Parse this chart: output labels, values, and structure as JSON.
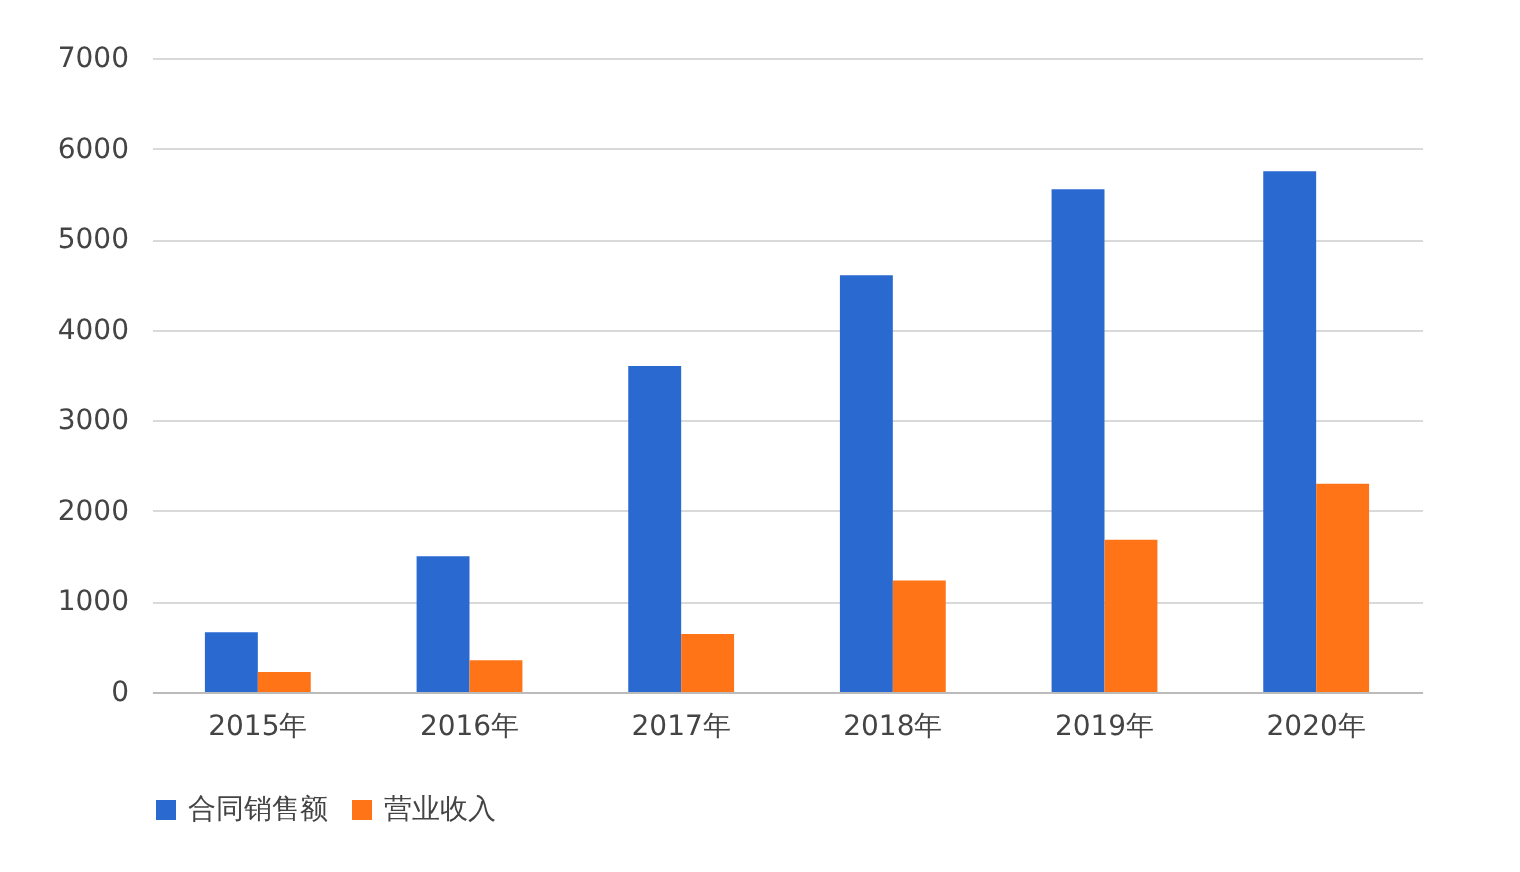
{
  "chart_data": {
    "type": "bar",
    "categories": [
      "2015年",
      "2016年",
      "2017年",
      "2018年",
      "2019年",
      "2020年"
    ],
    "series": [
      {
        "name": "合同销售额",
        "color": "#2a6ad0",
        "values": [
          660,
          1500,
          3600,
          4600,
          5550,
          5750
        ]
      },
      {
        "name": "营业收入",
        "color": "#ff7417",
        "values": [
          220,
          350,
          640,
          1230,
          1680,
          2300
        ]
      }
    ],
    "ylim": [
      0,
      7000
    ],
    "yticks": [
      0,
      1000,
      2000,
      3000,
      4000,
      5000,
      6000,
      7000
    ],
    "grid": "y",
    "legend": "bottom"
  }
}
